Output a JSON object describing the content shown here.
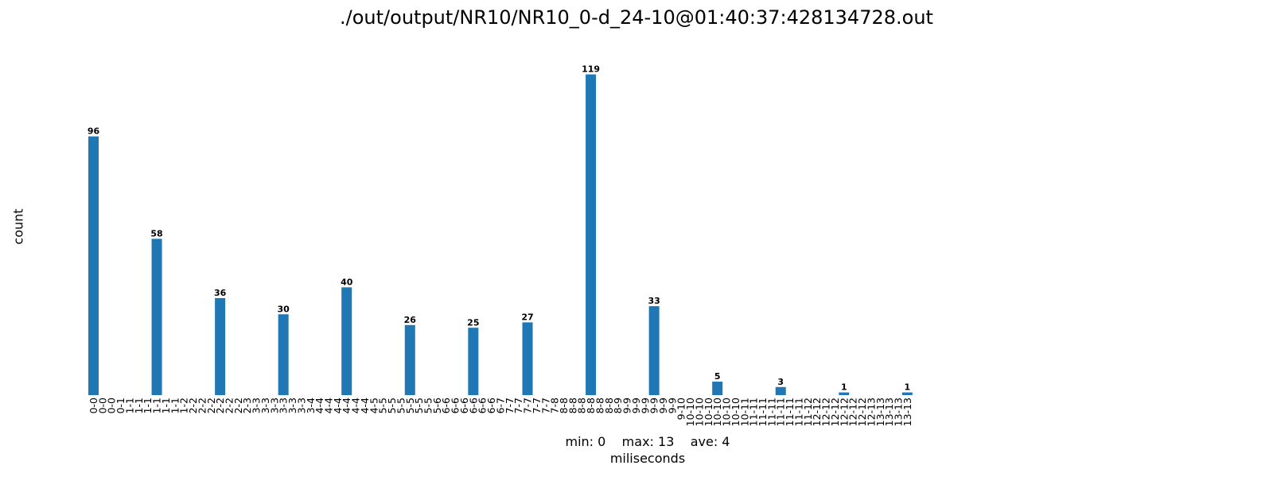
{
  "chart_data": {
    "type": "bar",
    "title": "./out/output/NR10/NR10_0-d_24-10@01:40:37:428134728.out",
    "xlabel": "miliseconds",
    "ylabel": "count",
    "stats_text": "min: 0    max: 13    ave: 4",
    "bar_color": "#1f77b4",
    "grid": false,
    "ylim": [
      0,
      125
    ],
    "categories": [
      "0-0",
      "0-0",
      "0-0",
      "0-1",
      "1-1",
      "1-1",
      "1-1",
      "1-1",
      "1-1",
      "1-1",
      "1-2",
      "2-2",
      "2-2",
      "2-2",
      "2-2",
      "2-2",
      "2-2",
      "2-3",
      "3-3",
      "3-3",
      "3-3",
      "3-3",
      "3-3",
      "3-3",
      "3-4",
      "4-4",
      "4-4",
      "4-4",
      "4-4",
      "4-4",
      "4-4",
      "4-5",
      "5-5",
      "5-5",
      "5-5",
      "5-5",
      "5-5",
      "5-5",
      "5-6",
      "6-6",
      "6-6",
      "6-6",
      "6-6",
      "6-6",
      "6-6",
      "6-7",
      "7-7",
      "7-7",
      "7-7",
      "7-7",
      "7-7",
      "7-8",
      "8-8",
      "8-8",
      "8-8",
      "8-8",
      "8-8",
      "8-8",
      "8-9",
      "9-9",
      "9-9",
      "9-9",
      "9-9",
      "9-9",
      "9-9",
      "9-10",
      "10-10",
      "10-10",
      "10-10",
      "10-10",
      "10-10",
      "10-10",
      "10-11",
      "11-11",
      "11-11",
      "11-11",
      "11-11",
      "11-11",
      "11-11",
      "11-12",
      "12-12",
      "12-12",
      "12-12",
      "12-12",
      "12-12",
      "12-12",
      "12-13",
      "13-13",
      "13-13",
      "13-13",
      "13-13"
    ],
    "values": [
      96,
      0,
      0,
      0,
      0,
      0,
      0,
      58,
      0,
      0,
      0,
      0,
      0,
      0,
      36,
      0,
      0,
      0,
      0,
      0,
      0,
      30,
      0,
      0,
      0,
      0,
      0,
      0,
      40,
      0,
      0,
      0,
      0,
      0,
      0,
      26,
      0,
      0,
      0,
      0,
      0,
      0,
      25,
      0,
      0,
      0,
      0,
      0,
      27,
      0,
      0,
      0,
      0,
      0,
      0,
      119,
      0,
      0,
      0,
      0,
      0,
      0,
      33,
      0,
      0,
      0,
      0,
      0,
      0,
      5,
      0,
      0,
      0,
      0,
      0,
      0,
      3,
      0,
      0,
      0,
      0,
      0,
      0,
      1,
      0,
      0,
      0,
      0,
      0,
      0,
      1
    ]
  }
}
